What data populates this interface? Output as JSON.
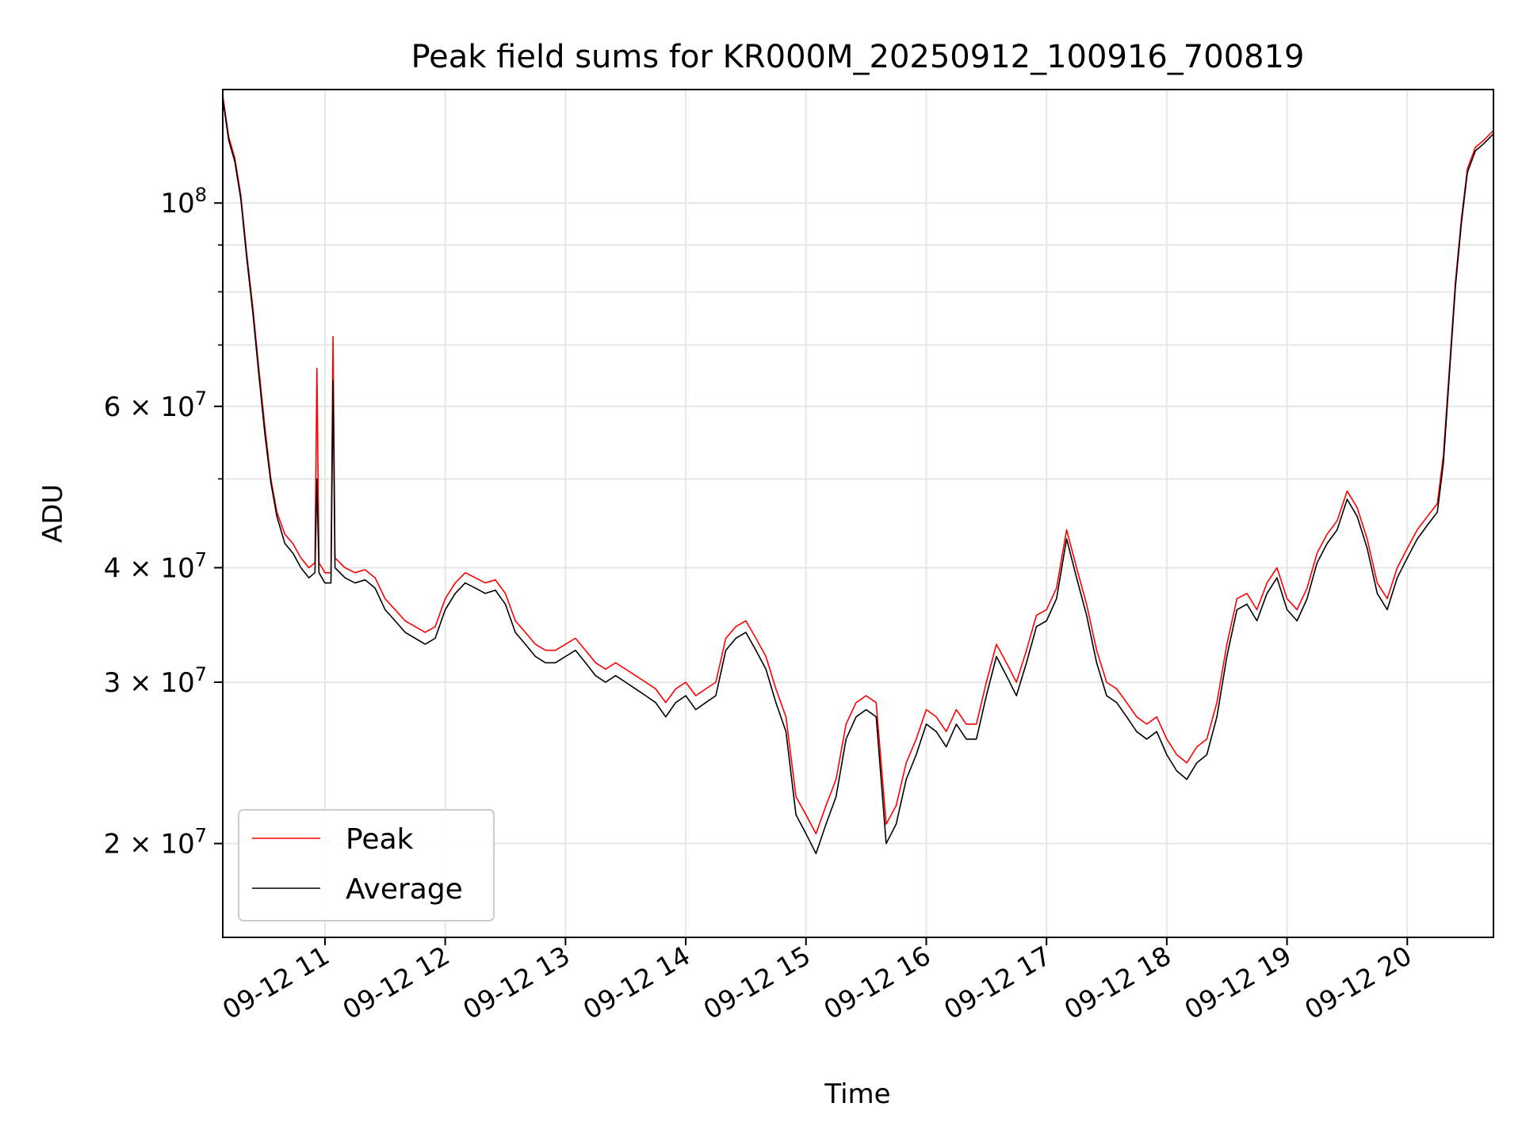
{
  "chart_data": {
    "type": "line",
    "title": "Peak field sums for KR000M_20250912_100916_700819",
    "xlabel": "Time",
    "ylabel": "ADU",
    "yscale": "log",
    "ylim": [
      15800000,
      133000000
    ],
    "xlim": [
      "2025-09-12 10:09",
      "2025-09-12 20:43"
    ],
    "grid": true,
    "legend_position": "lower-left",
    "x_ticks": [
      "09-12 11",
      "09-12 12",
      "09-12 13",
      "09-12 14",
      "09-12 15",
      "09-12 16",
      "09-12 17",
      "09-12 18",
      "09-12 19",
      "09-12 20"
    ],
    "y_ticks": [
      {
        "value": 20000000,
        "mantissa": "2",
        "base": "10",
        "exp": "7"
      },
      {
        "value": 30000000,
        "mantissa": "3",
        "base": "10",
        "exp": "7"
      },
      {
        "value": 40000000,
        "mantissa": "4",
        "base": "10",
        "exp": "7"
      },
      {
        "value": 60000000,
        "mantissa": "6",
        "base": "10",
        "exp": "7"
      },
      {
        "value": 100000000,
        "mantissa": "",
        "base": "10",
        "exp": "8"
      }
    ],
    "series": [
      {
        "name": "Peak",
        "color": "#ff0000",
        "points": [
          [
            "10:09",
            131000000
          ],
          [
            "10:12",
            118000000
          ],
          [
            "10:15",
            112000000
          ],
          [
            "10:18",
            102000000
          ],
          [
            "10:21",
            88000000
          ],
          [
            "10:24",
            77000000
          ],
          [
            "10:27",
            66000000
          ],
          [
            "10:30",
            57000000
          ],
          [
            "10:33",
            50000000
          ],
          [
            "10:36",
            46000000
          ],
          [
            "10:40",
            43500000
          ],
          [
            "10:44",
            42500000
          ],
          [
            "10:48",
            41000000
          ],
          [
            "10:52",
            40000000
          ],
          [
            "10:55",
            40500000
          ],
          [
            "10:56",
            66000000
          ],
          [
            "10:57",
            40500000
          ],
          [
            "11:00",
            39500000
          ],
          [
            "11:03",
            39500000
          ],
          [
            "11:04",
            71500000
          ],
          [
            "11:05",
            41000000
          ],
          [
            "11:10",
            40000000
          ],
          [
            "11:15",
            39500000
          ],
          [
            "11:20",
            39800000
          ],
          [
            "11:25",
            39000000
          ],
          [
            "11:30",
            37000000
          ],
          [
            "11:35",
            36000000
          ],
          [
            "11:40",
            35000000
          ],
          [
            "11:45",
            34500000
          ],
          [
            "11:50",
            34000000
          ],
          [
            "11:55",
            34500000
          ],
          [
            "12:00",
            37000000
          ],
          [
            "12:05",
            38500000
          ],
          [
            "12:10",
            39500000
          ],
          [
            "12:15",
            39000000
          ],
          [
            "12:20",
            38500000
          ],
          [
            "12:25",
            38800000
          ],
          [
            "12:30",
            37500000
          ],
          [
            "12:35",
            35000000
          ],
          [
            "12:40",
            34000000
          ],
          [
            "12:45",
            33000000
          ],
          [
            "12:50",
            32500000
          ],
          [
            "12:55",
            32500000
          ],
          [
            "13:00",
            33000000
          ],
          [
            "13:05",
            33500000
          ],
          [
            "13:10",
            32500000
          ],
          [
            "13:15",
            31500000
          ],
          [
            "13:20",
            31000000
          ],
          [
            "13:25",
            31500000
          ],
          [
            "13:30",
            31000000
          ],
          [
            "13:35",
            30500000
          ],
          [
            "13:40",
            30000000
          ],
          [
            "13:45",
            29500000
          ],
          [
            "13:50",
            28500000
          ],
          [
            "13:55",
            29500000
          ],
          [
            "14:00",
            30000000
          ],
          [
            "14:05",
            29000000
          ],
          [
            "14:10",
            29500000
          ],
          [
            "14:15",
            30000000
          ],
          [
            "14:20",
            33500000
          ],
          [
            "14:25",
            34500000
          ],
          [
            "14:30",
            35000000
          ],
          [
            "14:35",
            33500000
          ],
          [
            "14:40",
            32000000
          ],
          [
            "14:45",
            29500000
          ],
          [
            "14:50",
            27500000
          ],
          [
            "14:55",
            22500000
          ],
          [
            "15:00",
            21500000
          ],
          [
            "15:05",
            20500000
          ],
          [
            "15:10",
            22000000
          ],
          [
            "15:15",
            23500000
          ],
          [
            "15:20",
            27000000
          ],
          [
            "15:25",
            28500000
          ],
          [
            "15:30",
            29000000
          ],
          [
            "15:35",
            28500000
          ],
          [
            "15:40",
            21000000
          ],
          [
            "15:45",
            22000000
          ],
          [
            "15:50",
            24500000
          ],
          [
            "15:55",
            26000000
          ],
          [
            "16:00",
            28000000
          ],
          [
            "16:05",
            27500000
          ],
          [
            "16:10",
            26500000
          ],
          [
            "16:15",
            28000000
          ],
          [
            "16:20",
            27000000
          ],
          [
            "16:25",
            27000000
          ],
          [
            "16:30",
            30000000
          ],
          [
            "16:35",
            33000000
          ],
          [
            "16:40",
            31500000
          ],
          [
            "16:45",
            30000000
          ],
          [
            "16:50",
            32500000
          ],
          [
            "16:55",
            35500000
          ],
          [
            "17:00",
            36000000
          ],
          [
            "17:05",
            38000000
          ],
          [
            "17:10",
            44000000
          ],
          [
            "17:15",
            40000000
          ],
          [
            "17:20",
            36500000
          ],
          [
            "17:25",
            32500000
          ],
          [
            "17:30",
            30000000
          ],
          [
            "17:35",
            29500000
          ],
          [
            "17:40",
            28500000
          ],
          [
            "17:45",
            27500000
          ],
          [
            "17:50",
            27000000
          ],
          [
            "17:55",
            27500000
          ],
          [
            "18:00",
            26000000
          ],
          [
            "18:05",
            25000000
          ],
          [
            "18:10",
            24500000
          ],
          [
            "18:15",
            25500000
          ],
          [
            "18:20",
            26000000
          ],
          [
            "18:25",
            28500000
          ],
          [
            "18:30",
            33000000
          ],
          [
            "18:35",
            37000000
          ],
          [
            "18:40",
            37500000
          ],
          [
            "18:45",
            36000000
          ],
          [
            "18:50",
            38500000
          ],
          [
            "18:55",
            40000000
          ],
          [
            "19:00",
            37000000
          ],
          [
            "19:05",
            36000000
          ],
          [
            "19:10",
            38000000
          ],
          [
            "19:15",
            41500000
          ],
          [
            "19:20",
            43500000
          ],
          [
            "19:25",
            45000000
          ],
          [
            "19:30",
            48500000
          ],
          [
            "19:35",
            46500000
          ],
          [
            "19:40",
            43000000
          ],
          [
            "19:45",
            38500000
          ],
          [
            "19:50",
            37000000
          ],
          [
            "19:55",
            40000000
          ],
          [
            "20:00",
            42000000
          ],
          [
            "20:05",
            44000000
          ],
          [
            "20:10",
            45500000
          ],
          [
            "20:15",
            47000000
          ],
          [
            "20:18",
            53000000
          ],
          [
            "20:21",
            66000000
          ],
          [
            "20:24",
            82000000
          ],
          [
            "20:27",
            96000000
          ],
          [
            "20:30",
            109000000
          ],
          [
            "20:34",
            115000000
          ],
          [
            "20:38",
            117000000
          ],
          [
            "20:43",
            120000000
          ]
        ]
      },
      {
        "name": "Average",
        "color": "#000000",
        "points": [
          [
            "10:09",
            130000000
          ],
          [
            "10:12",
            117000000
          ],
          [
            "10:15",
            111000000
          ],
          [
            "10:18",
            101000000
          ],
          [
            "10:21",
            87000000
          ],
          [
            "10:24",
            76000000
          ],
          [
            "10:27",
            65000000
          ],
          [
            "10:30",
            56000000
          ],
          [
            "10:33",
            49500000
          ],
          [
            "10:36",
            45500000
          ],
          [
            "10:40",
            42500000
          ],
          [
            "10:44",
            41500000
          ],
          [
            "10:48",
            40000000
          ],
          [
            "10:52",
            39000000
          ],
          [
            "10:55",
            39500000
          ],
          [
            "10:56",
            50000000
          ],
          [
            "10:57",
            39500000
          ],
          [
            "11:00",
            38500000
          ],
          [
            "11:03",
            38500000
          ],
          [
            "11:04",
            64000000
          ],
          [
            "11:05",
            40000000
          ],
          [
            "11:10",
            39000000
          ],
          [
            "11:15",
            38500000
          ],
          [
            "11:20",
            38800000
          ],
          [
            "11:25",
            38000000
          ],
          [
            "11:30",
            36000000
          ],
          [
            "11:35",
            35000000
          ],
          [
            "11:40",
            34000000
          ],
          [
            "11:45",
            33500000
          ],
          [
            "11:50",
            33000000
          ],
          [
            "11:55",
            33500000
          ],
          [
            "12:00",
            36000000
          ],
          [
            "12:05",
            37500000
          ],
          [
            "12:10",
            38500000
          ],
          [
            "12:15",
            38000000
          ],
          [
            "12:20",
            37500000
          ],
          [
            "12:25",
            37800000
          ],
          [
            "12:30",
            36500000
          ],
          [
            "12:35",
            34000000
          ],
          [
            "12:40",
            33000000
          ],
          [
            "12:45",
            32000000
          ],
          [
            "12:50",
            31500000
          ],
          [
            "12:55",
            31500000
          ],
          [
            "13:00",
            32000000
          ],
          [
            "13:05",
            32500000
          ],
          [
            "13:10",
            31500000
          ],
          [
            "13:15",
            30500000
          ],
          [
            "13:20",
            30000000
          ],
          [
            "13:25",
            30500000
          ],
          [
            "13:30",
            30000000
          ],
          [
            "13:35",
            29500000
          ],
          [
            "13:40",
            29000000
          ],
          [
            "13:45",
            28500000
          ],
          [
            "13:50",
            27500000
          ],
          [
            "13:55",
            28500000
          ],
          [
            "14:00",
            29000000
          ],
          [
            "14:05",
            28000000
          ],
          [
            "14:10",
            28500000
          ],
          [
            "14:15",
            29000000
          ],
          [
            "14:20",
            32500000
          ],
          [
            "14:25",
            33500000
          ],
          [
            "14:30",
            34000000
          ],
          [
            "14:35",
            32500000
          ],
          [
            "14:40",
            31000000
          ],
          [
            "14:45",
            28500000
          ],
          [
            "14:50",
            26500000
          ],
          [
            "14:55",
            21500000
          ],
          [
            "15:00",
            20500000
          ],
          [
            "15:05",
            19500000
          ],
          [
            "15:10",
            21000000
          ],
          [
            "15:15",
            22500000
          ],
          [
            "15:20",
            26000000
          ],
          [
            "15:25",
            27500000
          ],
          [
            "15:30",
            28000000
          ],
          [
            "15:35",
            27500000
          ],
          [
            "15:40",
            20000000
          ],
          [
            "15:45",
            21000000
          ],
          [
            "15:50",
            23500000
          ],
          [
            "15:55",
            25000000
          ],
          [
            "16:00",
            27000000
          ],
          [
            "16:05",
            26500000
          ],
          [
            "16:10",
            25500000
          ],
          [
            "16:15",
            27000000
          ],
          [
            "16:20",
            26000000
          ],
          [
            "16:25",
            26000000
          ],
          [
            "16:30",
            29000000
          ],
          [
            "16:35",
            32000000
          ],
          [
            "16:40",
            30500000
          ],
          [
            "16:45",
            29000000
          ],
          [
            "16:50",
            31500000
          ],
          [
            "16:55",
            34500000
          ],
          [
            "17:00",
            35000000
          ],
          [
            "17:05",
            37000000
          ],
          [
            "17:10",
            43000000
          ],
          [
            "17:15",
            39000000
          ],
          [
            "17:20",
            35500000
          ],
          [
            "17:25",
            31500000
          ],
          [
            "17:30",
            29000000
          ],
          [
            "17:35",
            28500000
          ],
          [
            "17:40",
            27500000
          ],
          [
            "17:45",
            26500000
          ],
          [
            "17:50",
            26000000
          ],
          [
            "17:55",
            26500000
          ],
          [
            "18:00",
            25000000
          ],
          [
            "18:05",
            24000000
          ],
          [
            "18:10",
            23500000
          ],
          [
            "18:15",
            24500000
          ],
          [
            "18:20",
            25000000
          ],
          [
            "18:25",
            27500000
          ],
          [
            "18:30",
            32000000
          ],
          [
            "18:35",
            36000000
          ],
          [
            "18:40",
            36500000
          ],
          [
            "18:45",
            35000000
          ],
          [
            "18:50",
            37500000
          ],
          [
            "18:55",
            39000000
          ],
          [
            "19:00",
            36000000
          ],
          [
            "19:05",
            35000000
          ],
          [
            "19:10",
            37000000
          ],
          [
            "19:15",
            40500000
          ],
          [
            "19:20",
            42500000
          ],
          [
            "19:25",
            44000000
          ],
          [
            "19:30",
            47500000
          ],
          [
            "19:35",
            45500000
          ],
          [
            "19:40",
            42000000
          ],
          [
            "19:45",
            37500000
          ],
          [
            "19:50",
            36000000
          ],
          [
            "19:55",
            39000000
          ],
          [
            "20:00",
            41000000
          ],
          [
            "20:05",
            43000000
          ],
          [
            "20:10",
            44500000
          ],
          [
            "20:15",
            46000000
          ],
          [
            "20:18",
            52000000
          ],
          [
            "20:21",
            65000000
          ],
          [
            "20:24",
            81000000
          ],
          [
            "20:27",
            95000000
          ],
          [
            "20:30",
            108000000
          ],
          [
            "20:34",
            114000000
          ],
          [
            "20:38",
            116000000
          ],
          [
            "20:43",
            119000000
          ]
        ]
      }
    ]
  }
}
